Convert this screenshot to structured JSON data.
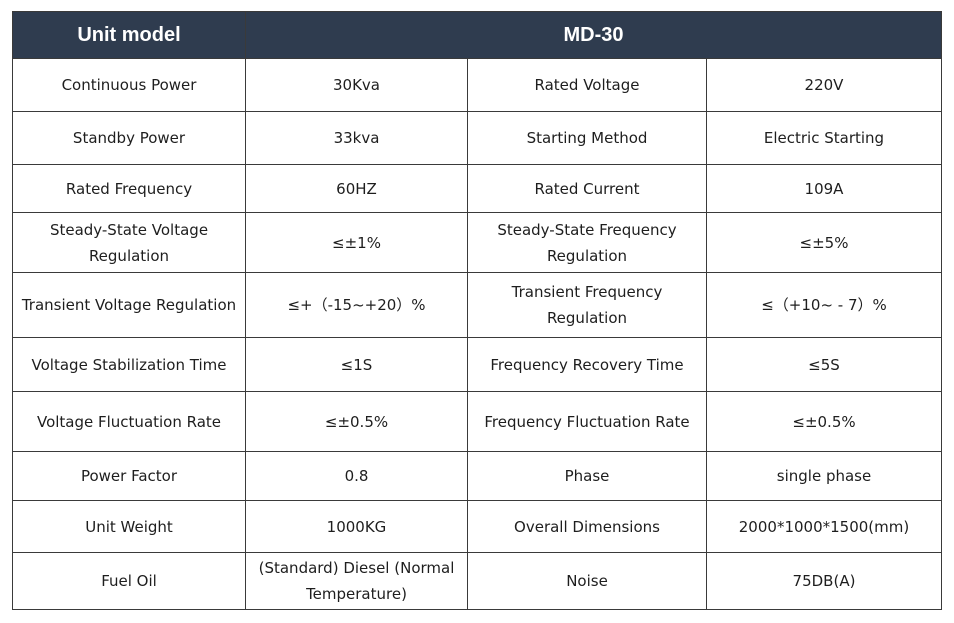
{
  "header": {
    "label": "Unit model",
    "model": "MD-30"
  },
  "rows": [
    {
      "h": 53,
      "cells": [
        "Continuous Power",
        "30Kva",
        "Rated Voltage",
        "220V"
      ]
    },
    {
      "h": 53,
      "cells": [
        "Standby Power",
        "33kva",
        "Starting Method",
        "Electric Starting"
      ]
    },
    {
      "h": 48,
      "cells": [
        "Rated Frequency",
        "60HZ",
        "Rated Current",
        "109A"
      ]
    },
    {
      "h": 60,
      "cells": [
        "Steady-State Voltage Regulation",
        "≤±1%",
        "Steady-State Frequency Regulation",
        "≤±5%"
      ]
    },
    {
      "h": 65,
      "cells": [
        "Transient Voltage Regulation",
        "≤+（-15~+20）%",
        "Transient Frequency Regulation",
        "≤（+10~ - 7）%"
      ]
    },
    {
      "h": 54,
      "cells": [
        "Voltage Stabilization Time",
        "≤1S",
        "Frequency Recovery Time",
        "≤5S"
      ]
    },
    {
      "h": 60,
      "cells": [
        "Voltage Fluctuation Rate",
        "≤±0.5%",
        "Frequency Fluctuation Rate",
        "≤±0.5%"
      ]
    },
    {
      "h": 49,
      "cells": [
        "Power Factor",
        "0.8",
        "Phase",
        "single phase"
      ]
    },
    {
      "h": 52,
      "cells": [
        "Unit Weight",
        "1000KG",
        "Overall Dimensions",
        "2000*1000*1500(mm)"
      ]
    },
    {
      "h": 53,
      "cells": [
        "Fuel Oil",
        "(Standard) Diesel (Normal Temperature)",
        "Noise",
        "75DB(A)"
      ]
    }
  ]
}
